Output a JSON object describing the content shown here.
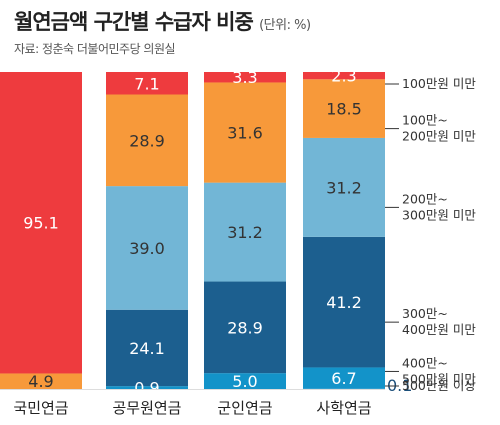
{
  "header": {
    "title": "월연금액 구간별 수급자 비중",
    "unit": "(단위: %)",
    "source": "자료: 정춘숙 더불어민주당 의원실"
  },
  "chart_data": {
    "type": "bar",
    "stacked": true,
    "title": "월연금액 구간별 수급자 비중",
    "unit": "%",
    "categories": [
      "국민연금",
      "공무원연금",
      "군인연금",
      "사학연금"
    ],
    "series": [
      {
        "name": "500만원 이상",
        "color": "#1e8fc8",
        "values": [
          0.0,
          0.0,
          0.0,
          0.1
        ]
      },
      {
        "name": "400만~500만원 미만",
        "color": "#1393c9",
        "values": [
          0.0,
          0.9,
          5.0,
          6.7
        ]
      },
      {
        "name": "300만~400만원 미만",
        "color": "#1c5f8f",
        "values": [
          0.0,
          24.1,
          28.9,
          41.2
        ]
      },
      {
        "name": "200만~300만원 미만",
        "color": "#72b6d6",
        "values": [
          0.0,
          39.0,
          31.2,
          31.2
        ]
      },
      {
        "name": "100만~200만원 미만",
        "color": "#f7993a",
        "values": [
          4.9,
          28.9,
          31.6,
          18.5
        ]
      },
      {
        "name": "100만원 미만",
        "color": "#ee3b3e",
        "values": [
          95.1,
          7.1,
          3.3,
          2.3
        ]
      }
    ],
    "data_labels": [
      [
        "",
        "",
        "",
        "0.1"
      ],
      [
        "",
        "0.9",
        "5.0",
        "6.7"
      ],
      [
        "",
        "24.1",
        "28.9",
        "41.2"
      ],
      [
        "",
        "39.0",
        "31.2",
        "31.2"
      ],
      [
        "4.9",
        "28.9",
        "31.6",
        "18.5"
      ],
      [
        "95.1",
        "7.1",
        "3.3",
        "2.3"
      ]
    ],
    "legend": [
      {
        "lines": [
          "100만원 미만"
        ],
        "series": "100만원 미만"
      },
      {
        "lines": [
          "100만~",
          "200만원 미만"
        ],
        "series": "100만~200만원 미만"
      },
      {
        "lines": [
          "200만~",
          "300만원 미만"
        ],
        "series": "200만~300만원 미만"
      },
      {
        "lines": [
          "300만~",
          "400만원 미만"
        ],
        "series": "300만~400만원 미만"
      },
      {
        "lines": [
          "400만~",
          "500만원 미만"
        ],
        "series": "400만~500만원 미만"
      },
      {
        "lines": [
          "500만원 이상"
        ],
        "series": "500만원 이상"
      }
    ],
    "legend_position": "right",
    "ylim": [
      0,
      100
    ],
    "grid": false
  }
}
